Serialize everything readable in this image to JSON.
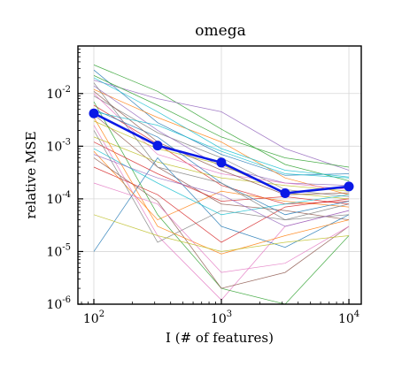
{
  "chart_data": {
    "type": "line",
    "title": "omega",
    "xlabel": "I  (# of features)",
    "ylabel": "relative MSE",
    "xscale": "log",
    "yscale": "log",
    "xlim": [
      75,
      12500
    ],
    "ylim": [
      1e-06,
      0.08
    ],
    "grid": true,
    "x": [
      100,
      316,
      1000,
      3162,
      10000
    ],
    "x_ticks": [
      {
        "value": 100,
        "base": "10",
        "exp": "2"
      },
      {
        "value": 1000,
        "base": "10",
        "exp": "3"
      },
      {
        "value": 10000,
        "base": "10",
        "exp": "4"
      }
    ],
    "y_ticks": [
      {
        "value": 0.01,
        "base": "10",
        "exp": "-2"
      },
      {
        "value": 0.001,
        "base": "10",
        "exp": "-3"
      },
      {
        "value": 0.0001,
        "base": "10",
        "exp": "-4"
      },
      {
        "value": 1e-05,
        "base": "10",
        "exp": "-5"
      },
      {
        "value": 1e-06,
        "base": "10",
        "exp": "-6"
      }
    ],
    "main_series": {
      "color": "#0a19e6",
      "values": [
        0.0042,
        0.00103,
        0.00049,
        0.000128,
        0.000172
      ]
    },
    "background_series": [
      {
        "color": "#1f77b4",
        "values": [
          0.028,
          0.0028,
          0.0007,
          0.00028,
          0.0003
        ]
      },
      {
        "color": "#ff7f0e",
        "values": [
          0.012,
          0.0035,
          0.0012,
          0.00025,
          0.00012
        ]
      },
      {
        "color": "#2ca02c",
        "values": [
          0.035,
          0.011,
          0.0021,
          0.00045,
          0.00022
        ]
      },
      {
        "color": "#d62728",
        "values": [
          0.006,
          0.0011,
          0.00018,
          8e-05,
          9e-05
        ]
      },
      {
        "color": "#9467bd",
        "values": [
          0.018,
          0.008,
          0.0045,
          0.0009,
          0.00035
        ]
      },
      {
        "color": "#8c564b",
        "values": [
          0.004,
          0.0004,
          8e-05,
          6e-05,
          4e-05
        ]
      },
      {
        "color": "#e377c2",
        "values": [
          0.0025,
          2e-05,
          1.2e-06,
          3e-05,
          6e-05
        ]
      },
      {
        "color": "#7f7f7f",
        "values": [
          0.009,
          0.0018,
          0.0006,
          0.00015,
          0.00011
        ]
      },
      {
        "color": "#bcbd22",
        "values": [
          0.0015,
          0.0005,
          0.00025,
          0.00018,
          0.00014
        ]
      },
      {
        "color": "#17becf",
        "values": [
          0.02,
          0.0045,
          0.0009,
          0.00035,
          0.00026
        ]
      },
      {
        "color": "#1f77b4",
        "values": [
          1e-05,
          0.0006,
          3e-05,
          1.2e-05,
          5e-05
        ]
      },
      {
        "color": "#ff7f0e",
        "values": [
          0.0008,
          4e-05,
          0.00014,
          9e-05,
          7e-05
        ]
      },
      {
        "color": "#2ca02c",
        "values": [
          0.007,
          5e-05,
          2e-06,
          8e-07,
          2e-05
        ]
      },
      {
        "color": "#d62728",
        "values": [
          0.0012,
          0.0003,
          9e-05,
          0.00011,
          8e-05
        ]
      },
      {
        "color": "#9467bd",
        "values": [
          0.014,
          0.002,
          0.0004,
          0.0002,
          0.00018
        ]
      },
      {
        "color": "#8c564b",
        "values": [
          0.0006,
          9e-05,
          2e-06,
          4e-06,
          3e-05
        ]
      },
      {
        "color": "#e377c2",
        "values": [
          0.01,
          0.0007,
          0.0003,
          0.0002,
          0.00015
        ]
      },
      {
        "color": "#7f7f7f",
        "values": [
          0.002,
          1.5e-05,
          6e-05,
          4e-05,
          5e-05
        ]
      },
      {
        "color": "#bcbd22",
        "values": [
          0.003,
          0.0009,
          0.00045,
          0.00013,
          0.0001
        ]
      },
      {
        "color": "#17becf",
        "values": [
          0.0009,
          0.0002,
          5e-05,
          8e-05,
          0.00012
        ]
      },
      {
        "color": "#1f77b4",
        "values": [
          0.005,
          0.0015,
          0.0002,
          5e-05,
          9e-05
        ]
      },
      {
        "color": "#2ca02c",
        "values": [
          0.022,
          0.006,
          0.0015,
          0.0006,
          0.0004
        ]
      },
      {
        "color": "#d62728",
        "values": [
          0.0004,
          0.00012,
          1.5e-05,
          7e-05,
          0.0001
        ]
      },
      {
        "color": "#ff7f0e",
        "values": [
          0.0035,
          3e-05,
          9e-06,
          2e-05,
          4e-05
        ]
      },
      {
        "color": "#9467bd",
        "values": [
          0.0007,
          0.00025,
          0.00012,
          3e-05,
          6e-05
        ]
      },
      {
        "color": "#8c564b",
        "values": [
          0.011,
          0.0012,
          0.00035,
          0.00012,
          0.00013
        ]
      },
      {
        "color": "#e377c2",
        "values": [
          0.0002,
          8e-05,
          4e-06,
          6e-06,
          3e-05
        ]
      },
      {
        "color": "#17becf",
        "values": [
          0.0045,
          0.0025,
          0.0008,
          0.0003,
          0.00025
        ]
      },
      {
        "color": "#bcbd22",
        "values": [
          5e-05,
          2e-05,
          1e-05,
          1.5e-05,
          2e-05
        ]
      },
      {
        "color": "#7f7f7f",
        "values": [
          0.016,
          0.0004,
          0.0002,
          4e-05,
          8e-05
        ]
      }
    ]
  }
}
